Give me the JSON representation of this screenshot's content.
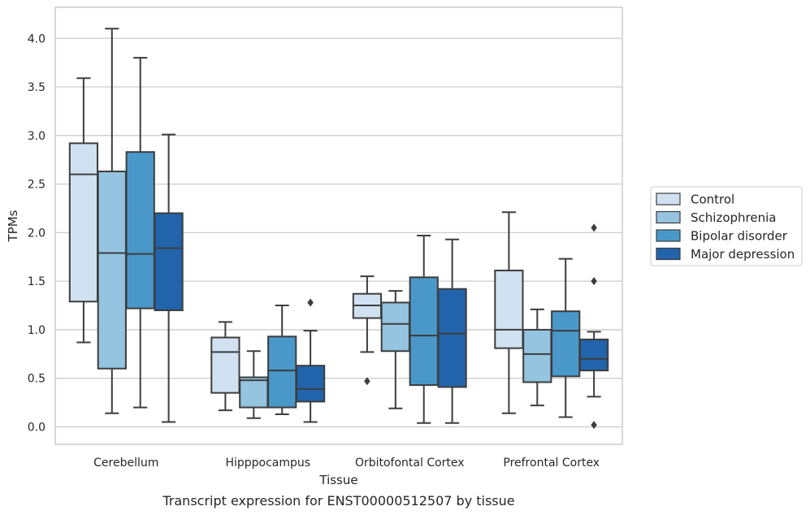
{
  "chart_data": {
    "type": "box",
    "title": "",
    "caption": "Transcript expression for ENST00000512507 by tissue",
    "xlabel": "Tissue",
    "ylabel": "TPMs",
    "ylim": [
      -0.18,
      4.32
    ],
    "yticks": [
      0.0,
      0.5,
      1.0,
      1.5,
      2.0,
      2.5,
      3.0,
      3.5,
      4.0
    ],
    "ytick_labels": [
      "0.0",
      "0.5",
      "1.0",
      "1.5",
      "2.0",
      "2.5",
      "3.0",
      "3.5",
      "4.0"
    ],
    "grid": "horizontal",
    "legend_position": "right",
    "categories": [
      "Cerebellum",
      "Hipppocampus",
      "Orbitofontal Cortex",
      "Prefrontal Cortex"
    ],
    "series": [
      {
        "name": "Control",
        "color": "#d0e1f2",
        "boxes": [
          {
            "whislo": 0.87,
            "q1": 1.29,
            "med": 2.6,
            "q3": 2.92,
            "whishi": 3.59,
            "fliers": []
          },
          {
            "whislo": 0.17,
            "q1": 0.35,
            "med": 0.77,
            "q3": 0.92,
            "whishi": 1.08,
            "fliers": []
          },
          {
            "whislo": 0.77,
            "q1": 1.12,
            "med": 1.25,
            "q3": 1.37,
            "whishi": 1.55,
            "fliers": [
              0.47
            ]
          },
          {
            "whislo": 0.14,
            "q1": 0.81,
            "med": 1.0,
            "q3": 1.61,
            "whishi": 2.21,
            "fliers": []
          }
        ]
      },
      {
        "name": "Schizophrenia",
        "color": "#94c4df",
        "boxes": [
          {
            "whislo": 0.14,
            "q1": 0.6,
            "med": 1.79,
            "q3": 2.63,
            "whishi": 4.1,
            "fliers": []
          },
          {
            "whislo": 0.09,
            "q1": 0.2,
            "med": 0.48,
            "q3": 0.51,
            "whishi": 0.78,
            "fliers": []
          },
          {
            "whislo": 0.19,
            "q1": 0.78,
            "med": 1.06,
            "q3": 1.28,
            "whishi": 1.4,
            "fliers": []
          },
          {
            "whislo": 0.22,
            "q1": 0.46,
            "med": 0.75,
            "q3": 1.0,
            "whishi": 1.21,
            "fliers": []
          }
        ]
      },
      {
        "name": "Bipolar disorder",
        "color": "#4a98c9",
        "boxes": [
          {
            "whislo": 0.2,
            "q1": 1.22,
            "med": 1.78,
            "q3": 2.83,
            "whishi": 3.8,
            "fliers": []
          },
          {
            "whislo": 0.13,
            "q1": 0.2,
            "med": 0.58,
            "q3": 0.93,
            "whishi": 1.25,
            "fliers": []
          },
          {
            "whislo": 0.04,
            "q1": 0.43,
            "med": 0.94,
            "q3": 1.54,
            "whishi": 1.97,
            "fliers": []
          },
          {
            "whislo": 0.1,
            "q1": 0.52,
            "med": 0.99,
            "q3": 1.19,
            "whishi": 1.73,
            "fliers": []
          }
        ]
      },
      {
        "name": "Major depression",
        "color": "#2164ab",
        "boxes": [
          {
            "whislo": 0.05,
            "q1": 1.2,
            "med": 1.84,
            "q3": 2.2,
            "whishi": 3.01,
            "fliers": []
          },
          {
            "whislo": 0.05,
            "q1": 0.26,
            "med": 0.39,
            "q3": 0.63,
            "whishi": 0.99,
            "fliers": [
              1.28
            ]
          },
          {
            "whislo": 0.04,
            "q1": 0.41,
            "med": 0.96,
            "q3": 1.42,
            "whishi": 1.93,
            "fliers": []
          },
          {
            "whislo": 0.31,
            "q1": 0.58,
            "med": 0.7,
            "q3": 0.9,
            "whishi": 0.98,
            "fliers": [
              1.5,
              2.05,
              0.02
            ]
          }
        ]
      }
    ]
  }
}
